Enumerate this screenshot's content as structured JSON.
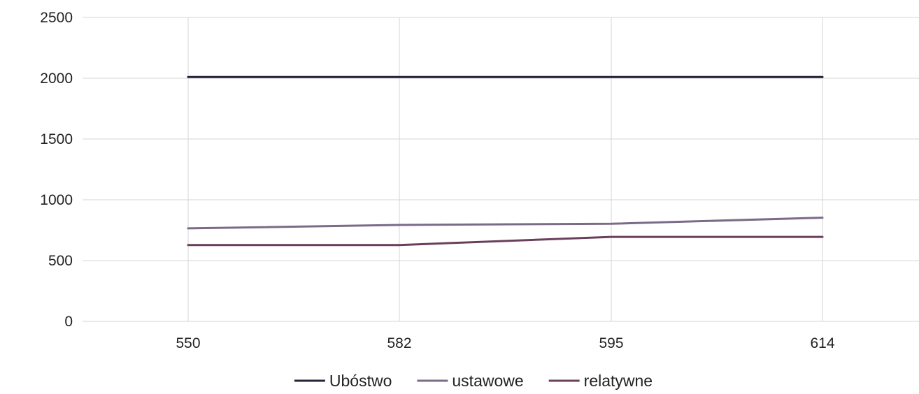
{
  "chart_data": {
    "type": "line",
    "categories": [
      "550",
      "582",
      "595",
      "614"
    ],
    "series": [
      {
        "name": "Ubóstwo",
        "values": [
          2010,
          2010,
          2010,
          2010
        ],
        "color": "#23233b"
      },
      {
        "name": "ustawowe",
        "values": [
          765,
          793,
          803,
          853
        ],
        "color": "#7b6a88"
      },
      {
        "name": "relatywne",
        "values": [
          628,
          628,
          695,
          695
        ],
        "color": "#6a3f5b"
      }
    ],
    "yticks": [
      "0",
      "500",
      "1000",
      "1500",
      "2000",
      "2500"
    ],
    "ylim": [
      0,
      2500
    ],
    "grid": true,
    "legend_position": "bottom"
  }
}
